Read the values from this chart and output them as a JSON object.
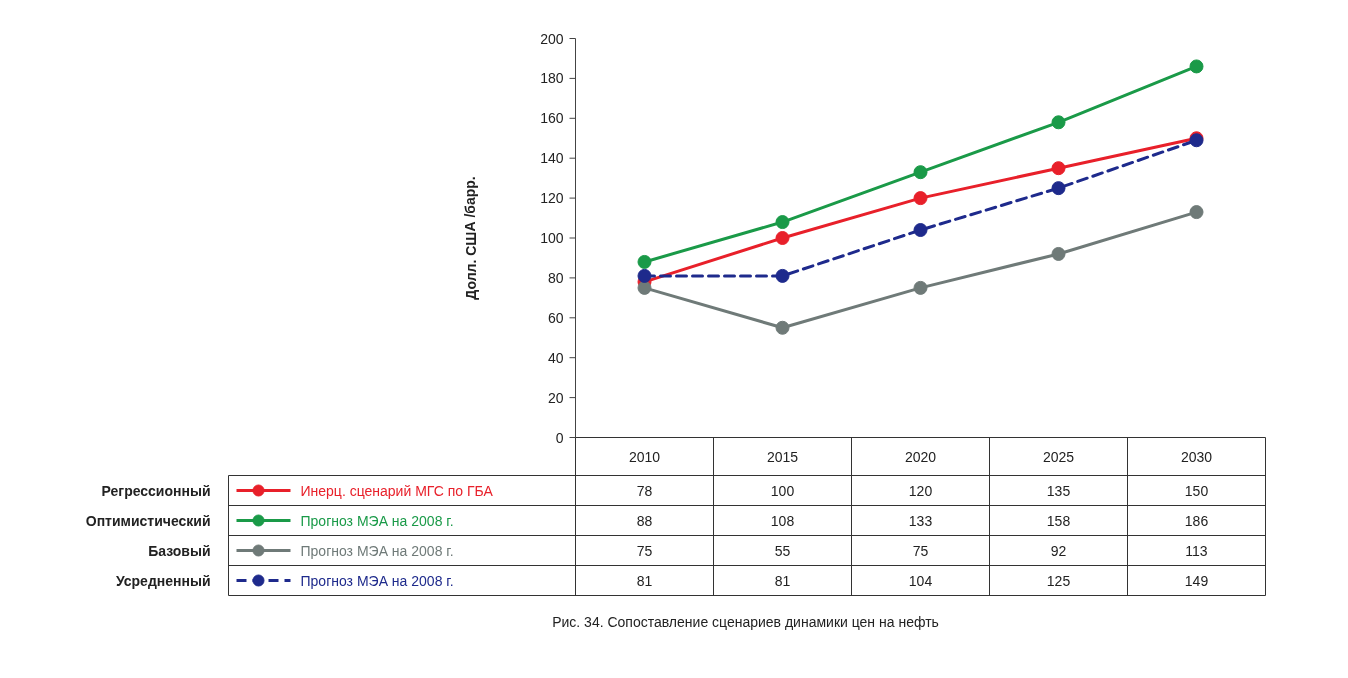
{
  "chart_data": {
    "type": "line",
    "ylabel": "Долл. США /барр.",
    "categories": [
      "2010",
      "2015",
      "2020",
      "2025",
      "2030"
    ],
    "series": [
      {
        "name": "Инерц. сценарий МГС по ГБА",
        "color": "#e8202a",
        "values": [
          78,
          100,
          120,
          135,
          150
        ],
        "line_style": "solid"
      },
      {
        "name": "Прогноз МЭА на 2008 г.",
        "color": "#1a9a48",
        "values": [
          88,
          108,
          133,
          158,
          186
        ],
        "line_style": "solid"
      },
      {
        "name": "Прогноз МЭА на 2008 г.",
        "color": "#6f7a78",
        "values": [
          75,
          55,
          75,
          92,
          113
        ],
        "line_style": "solid"
      },
      {
        "name": "Прогноз МЭА на 2008 г.",
        "color": "#1e2a8c",
        "values": [
          81,
          81,
          104,
          125,
          149
        ],
        "line_style": "dashed"
      }
    ],
    "ylim": [
      0,
      200
    ],
    "yticks": [
      0,
      20,
      40,
      60,
      80,
      100,
      120,
      140,
      160,
      180,
      200
    ],
    "marker": "circle",
    "data_labels": true,
    "legend": "bottom",
    "annotations": [
      "Регрессионный",
      "Оптимистический",
      "Базовый",
      "Усредненный",
      "Рис. 34. Сопоставление сценариев динамики цен на нефть"
    ]
  }
}
